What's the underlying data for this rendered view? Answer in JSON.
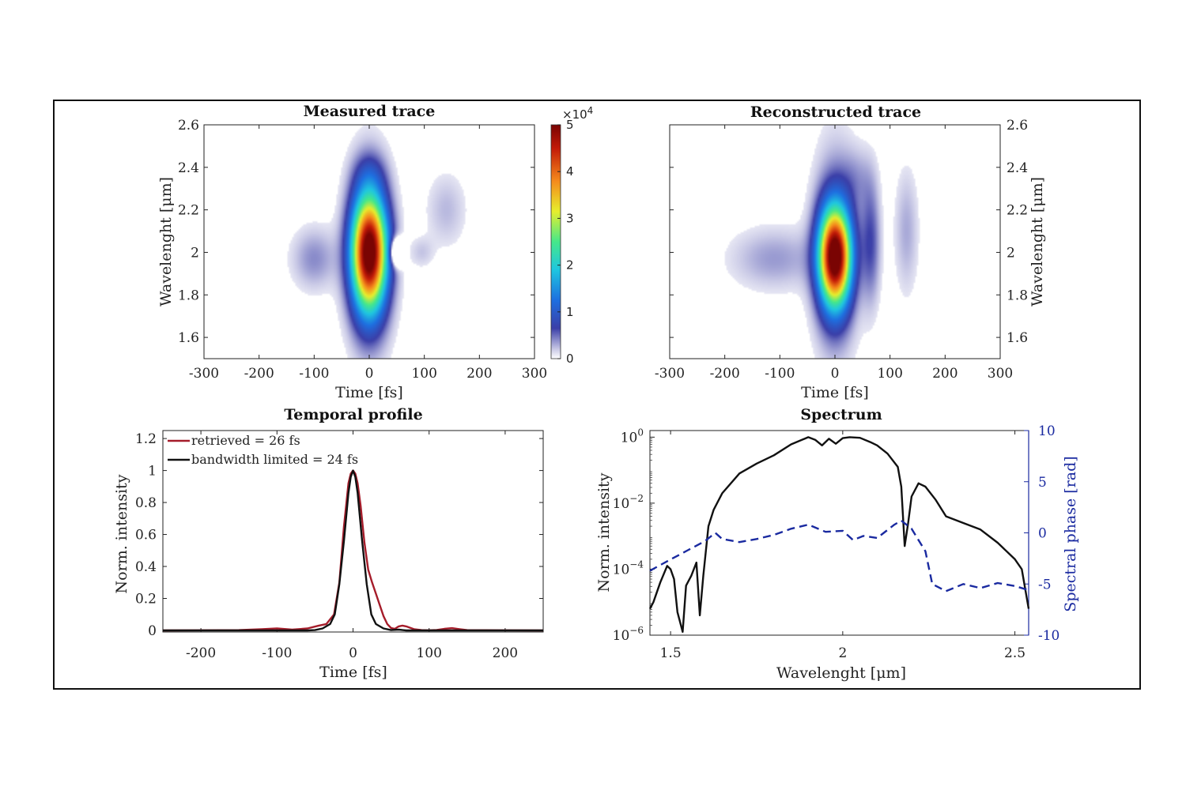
{
  "chart_data": [
    {
      "id": "measured",
      "type": "heatmap",
      "title": "Measured trace",
      "xlabel": "Time [fs]",
      "ylabel": "Wavelenght [μm]",
      "xlim": [
        -300,
        300
      ],
      "ylim": [
        1.5,
        2.6
      ],
      "xticks": [
        "-300",
        "-200",
        "-100",
        "0",
        "100",
        "200",
        "300"
      ],
      "yticks": [
        "1.6",
        "1.8",
        "2",
        "2.2",
        "2.4",
        "2.6"
      ],
      "colormap": [
        "#ffffff",
        "#c9c9e6",
        "#3b3fa8",
        "#1e6fe0",
        "#1fc6e0",
        "#46e88a",
        "#e7ee2d",
        "#f58a1c",
        "#c21a08",
        "#7a0403"
      ],
      "colorbar": {
        "min": 0,
        "max": 5,
        "ticks": [
          "0",
          "1",
          "2",
          "3",
          "4",
          "5"
        ],
        "multiplier": "×10",
        "exponent": "4"
      },
      "blobs": [
        {
          "t": 0,
          "lam": 2.0,
          "st": 22,
          "sl": 0.19,
          "a": 1.0
        },
        {
          "t": 0,
          "lam": 1.98,
          "st": 28,
          "sl": 0.3,
          "a": 0.1
        },
        {
          "t": 0,
          "lam": 2.37,
          "st": 20,
          "sl": 0.07,
          "a": 0.05
        },
        {
          "t": -100,
          "lam": 1.97,
          "st": 28,
          "sl": 0.1,
          "a": 0.08
        },
        {
          "t": 50,
          "lam": 2.0,
          "st": 8,
          "sl": 0.04,
          "a": -0.35
        },
        {
          "t": 140,
          "lam": 2.2,
          "st": 25,
          "sl": 0.12,
          "a": 0.05
        },
        {
          "t": 95,
          "lam": 2.0,
          "st": 15,
          "sl": 0.05,
          "a": 0.04
        }
      ]
    },
    {
      "id": "reconstructed",
      "type": "heatmap",
      "title": "Reconstructed trace",
      "xlabel": "Time [fs]",
      "ylabel": "Wavelenght [μm]",
      "xlim": [
        -300,
        300
      ],
      "ylim": [
        1.5,
        2.6
      ],
      "xticks": [
        "-300",
        "-200",
        "-100",
        "0",
        "100",
        "200",
        "300"
      ],
      "yticks": [
        "1.6",
        "1.8",
        "2",
        "2.2",
        "2.4",
        "2.6"
      ],
      "blobs": [
        {
          "t": 0,
          "lam": 1.98,
          "st": 20,
          "sl": 0.16,
          "a": 1.0
        },
        {
          "t": 0,
          "lam": 2.0,
          "st": 27,
          "sl": 0.33,
          "a": 0.12
        },
        {
          "t": 65,
          "lam": 2.05,
          "st": 12,
          "sl": 0.2,
          "a": 0.12
        },
        {
          "t": 130,
          "lam": 2.1,
          "st": 15,
          "sl": 0.2,
          "a": 0.06
        },
        {
          "t": -110,
          "lam": 1.97,
          "st": 55,
          "sl": 0.1,
          "a": 0.07
        },
        {
          "t": 40,
          "lam": 2.35,
          "st": 20,
          "sl": 0.1,
          "a": 0.05
        }
      ]
    },
    {
      "id": "temporal",
      "type": "line",
      "title": "Temporal profile",
      "xlabel": "Time [fs]",
      "ylabel": "Norm. intensity",
      "xlim": [
        -250,
        250
      ],
      "ylim": [
        -0.01,
        1.25
      ],
      "xticks": [
        -200,
        -100,
        0,
        100,
        200
      ],
      "yticks": [
        0,
        0.2,
        0.4,
        0.6,
        0.8,
        1,
        1.2
      ],
      "legend_position": "top-left",
      "series": [
        {
          "name": "retrieved = 26 fs",
          "color": "#a51c2a",
          "x": [
            -250,
            -150,
            -120,
            -100,
            -80,
            -60,
            -45,
            -35,
            -25,
            -18,
            -12,
            -6,
            -3,
            0,
            3,
            6,
            10,
            15,
            20,
            25,
            30,
            35,
            40,
            45,
            50,
            55,
            60,
            65,
            70,
            80,
            90,
            100,
            110,
            120,
            130,
            140,
            150,
            250
          ],
          "y": [
            0,
            0.002,
            0.008,
            0.012,
            0.005,
            0.012,
            0.03,
            0.04,
            0.1,
            0.3,
            0.65,
            0.92,
            0.98,
            1.0,
            0.98,
            0.92,
            0.78,
            0.55,
            0.38,
            0.3,
            0.23,
            0.16,
            0.09,
            0.04,
            0.015,
            0.01,
            0.025,
            0.03,
            0.025,
            0.008,
            0.002,
            0.001,
            0.003,
            0.01,
            0.014,
            0.008,
            0.002,
            0
          ]
        },
        {
          "name": "bandwidth limited = 24 fs",
          "color": "#111111",
          "x": [
            -250,
            -60,
            -50,
            -40,
            -30,
            -24,
            -18,
            -12,
            -6,
            -3,
            0,
            3,
            6,
            12,
            18,
            24,
            30,
            40,
            50,
            60,
            70,
            250
          ],
          "y": [
            0,
            0,
            0.002,
            0.012,
            0.04,
            0.1,
            0.29,
            0.56,
            0.86,
            0.96,
            1.0,
            0.96,
            0.86,
            0.56,
            0.29,
            0.1,
            0.04,
            0.012,
            0.002,
            0.005,
            0,
            0
          ]
        }
      ]
    },
    {
      "id": "spectrum",
      "type": "line",
      "title": "Spectrum",
      "xlabel": "Wavelenght [μm]",
      "ylabel": "Norm. intensity",
      "y2label": "Spectral phase [rad]",
      "y2color": "#1a2aa0",
      "xlim": [
        1.44,
        2.54
      ],
      "ylim_log10": [
        -6,
        0.2
      ],
      "y2lim": [
        -10,
        10
      ],
      "xticks": [
        1.5,
        2,
        2.5
      ],
      "xtick_labels": [
        "1.5",
        "2",
        "2.5"
      ],
      "yticks_log10": [
        -6,
        -4,
        -2,
        0
      ],
      "y2ticks": [
        -10,
        -5,
        0,
        5,
        10
      ],
      "series": [
        {
          "name": "",
          "color": "#111111",
          "axis": "left",
          "scale": "log",
          "x": [
            1.44,
            1.45,
            1.47,
            1.49,
            1.5,
            1.51,
            1.52,
            1.535,
            1.545,
            1.56,
            1.575,
            1.585,
            1.595,
            1.61,
            1.625,
            1.65,
            1.7,
            1.75,
            1.8,
            1.85,
            1.9,
            1.92,
            1.94,
            1.96,
            1.98,
            2.0,
            2.02,
            2.05,
            2.08,
            2.1,
            2.13,
            2.16,
            2.17,
            2.18,
            2.19,
            2.2,
            2.22,
            2.24,
            2.27,
            2.3,
            2.35,
            2.4,
            2.45,
            2.5,
            2.52,
            2.54
          ],
          "y": [
            -5.2,
            -5.0,
            -4.4,
            -3.9,
            -4.0,
            -4.3,
            -5.3,
            -5.9,
            -4.5,
            -4.2,
            -3.8,
            -5.4,
            -4.2,
            -2.7,
            -2.2,
            -1.7,
            -1.1,
            -0.8,
            -0.55,
            -0.22,
            0,
            -0.08,
            -0.25,
            -0.05,
            -0.2,
            -0.03,
            0,
            -0.02,
            -0.15,
            -0.25,
            -0.5,
            -0.9,
            -1.5,
            -3.3,
            -2.6,
            -1.8,
            -1.4,
            -1.5,
            -1.9,
            -2.4,
            -2.6,
            -2.8,
            -3.2,
            -3.7,
            -4.0,
            -5.2
          ]
        },
        {
          "name": "",
          "color": "#1a2aa0",
          "axis": "right",
          "dash": true,
          "x": [
            1.44,
            1.5,
            1.55,
            1.6,
            1.63,
            1.65,
            1.7,
            1.75,
            1.8,
            1.85,
            1.9,
            1.95,
            2.0,
            2.03,
            2.06,
            2.1,
            2.15,
            2.17,
            2.2,
            2.24,
            2.26,
            2.3,
            2.35,
            2.4,
            2.45,
            2.5,
            2.54
          ],
          "y": [
            -3.7,
            -2.6,
            -1.7,
            -0.8,
            0.0,
            -0.6,
            -0.9,
            -0.6,
            -0.2,
            0.4,
            0.8,
            0.1,
            0.2,
            -0.7,
            -0.3,
            -0.5,
            0.8,
            1.2,
            0.4,
            -1.8,
            -5.0,
            -5.7,
            -5.0,
            -5.4,
            -4.9,
            -5.2,
            -5.6
          ]
        }
      ]
    }
  ]
}
